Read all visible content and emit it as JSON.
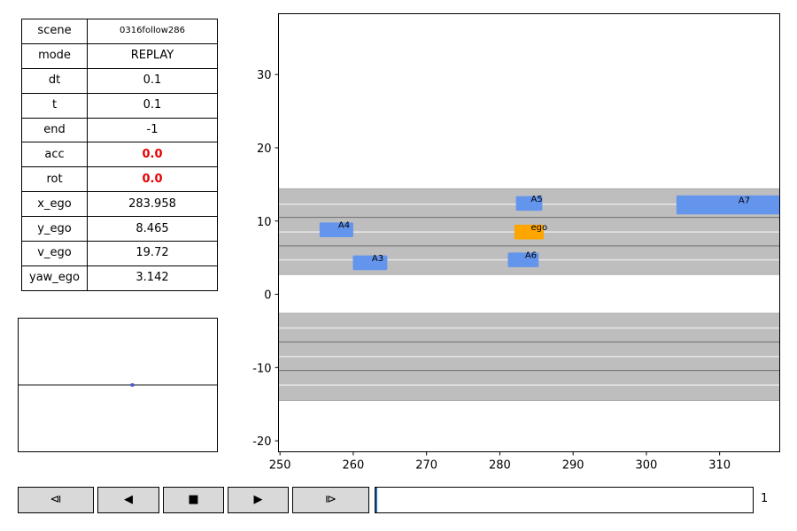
{
  "info_table": [
    {
      "key": "scene",
      "value": "0316follow286",
      "style": "small"
    },
    {
      "key": "mode",
      "value": "REPLAY",
      "style": ""
    },
    {
      "key": "dt",
      "value": "0.1",
      "style": ""
    },
    {
      "key": "t",
      "value": "0.1",
      "style": ""
    },
    {
      "key": "end",
      "value": "-1",
      "style": ""
    },
    {
      "key": "acc",
      "value": "0.0",
      "style": "red"
    },
    {
      "key": "rot",
      "value": "0.0",
      "style": "red"
    },
    {
      "key": "x_ego",
      "value": "283.958",
      "style": ""
    },
    {
      "key": "y_ego",
      "value": "8.465",
      "style": ""
    },
    {
      "key": "v_ego",
      "value": "19.72",
      "style": ""
    },
    {
      "key": "yaw_ego",
      "value": "3.142",
      "style": ""
    }
  ],
  "controls": {
    "step_back_icon": "⧏",
    "play_back_icon": "◀",
    "stop_icon": "■",
    "play_icon": "▶",
    "step_forward_icon": "⧐"
  },
  "progress": {
    "fraction": 0.005,
    "frame": "1"
  },
  "colors": {
    "road": "#bebebe",
    "agent": "#6495ed",
    "ego": "#ffa500",
    "lane_dashed": "#e6e6e6",
    "lane_solid": "#6e6e6e"
  },
  "chart_data": {
    "type": "scatter",
    "title": "",
    "xlabel": "",
    "ylabel": "",
    "xlim": [
      249.8,
      318.2
    ],
    "ylim": [
      -21.5,
      38.3
    ],
    "x_ticks": [
      "250",
      "260",
      "270",
      "280",
      "290",
      "300",
      "310"
    ],
    "y_ticks": [
      "30",
      "20",
      "10",
      "0",
      "-10",
      "-20"
    ],
    "road_bands": [
      {
        "y_min": 2.7,
        "y_max": 14.4
      },
      {
        "y_min": -14.5,
        "y_max": -2.6
      }
    ],
    "solid_lines_y": [
      10.5,
      6.6,
      -6.5,
      -10.4
    ],
    "dashed_lines_y": [
      12.3,
      8.5,
      4.7,
      -4.6,
      -8.5,
      -12.4
    ],
    "vehicles": [
      {
        "label": "ego",
        "x": 284.0,
        "y": 8.5,
        "length": 4.0,
        "width": 2.0,
        "kind": "ego"
      },
      {
        "label": "A3",
        "x": 262.3,
        "y": 4.3,
        "length": 4.7,
        "width": 2.0,
        "kind": "agent"
      },
      {
        "label": "A4",
        "x": 257.7,
        "y": 8.8,
        "length": 4.6,
        "width": 2.0,
        "kind": "agent"
      },
      {
        "label": "A5",
        "x": 284.0,
        "y": 12.4,
        "length": 3.6,
        "width": 2.0,
        "kind": "agent"
      },
      {
        "label": "A6",
        "x": 283.2,
        "y": 4.7,
        "length": 4.2,
        "width": 2.0,
        "kind": "agent"
      },
      {
        "label": "A7",
        "x": 311.6,
        "y": 12.2,
        "length": 15.0,
        "width": 2.6,
        "kind": "agent"
      }
    ]
  }
}
